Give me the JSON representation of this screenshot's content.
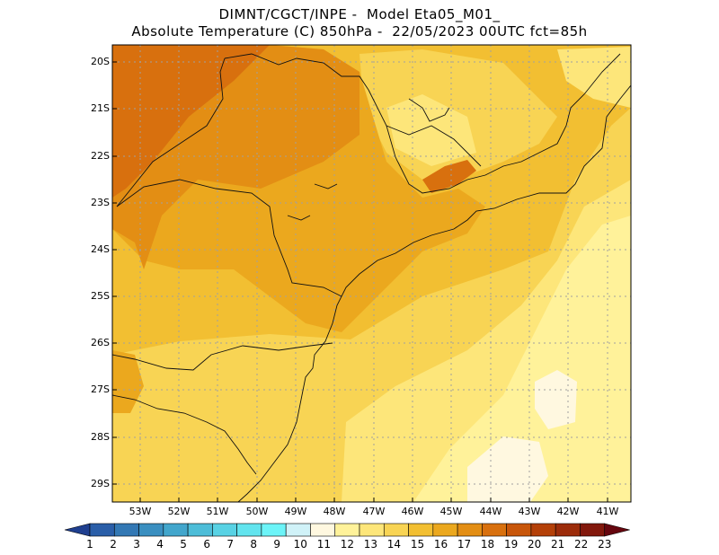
{
  "header": {
    "line1": "DIMNT/CGCT/INPE -  Model Eta05_M01_",
    "line2": "Absolute Temperature (C) 850hPa -  22/05/2023 00UTC fct=85h"
  },
  "map": {
    "lat_labels": [
      "20S",
      "21S",
      "22S",
      "23S",
      "24S",
      "25S",
      "26S",
      "27S",
      "28S",
      "29S"
    ],
    "lon_labels": [
      "53W",
      "52W",
      "51W",
      "50W",
      "49W",
      "48W",
      "47W",
      "46W",
      "45W",
      "44W",
      "43W",
      "42W",
      "41W"
    ],
    "grid": true
  },
  "colorbar": {
    "labels": [
      "1",
      "2",
      "3",
      "4",
      "5",
      "6",
      "7",
      "8",
      "9",
      "10",
      "11",
      "12",
      "13",
      "14",
      "15",
      "16",
      "17",
      "18",
      "19",
      "20",
      "21",
      "22",
      "23"
    ],
    "colors": [
      "#1f3f8f",
      "#2a5ea8",
      "#3378b4",
      "#3a8fc0",
      "#42a6cc",
      "#4dbdd8",
      "#58d2e4",
      "#62e4ee",
      "#6cf4f8",
      "#d0f2f8",
      "#fff8e0",
      "#fff29a",
      "#fde67a",
      "#f8d454",
      "#f2bf32",
      "#eba81e",
      "#e38e14",
      "#d8700e",
      "#c8560a",
      "#b44008",
      "#9c2c0a",
      "#82180c",
      "#66060e"
    ]
  }
}
